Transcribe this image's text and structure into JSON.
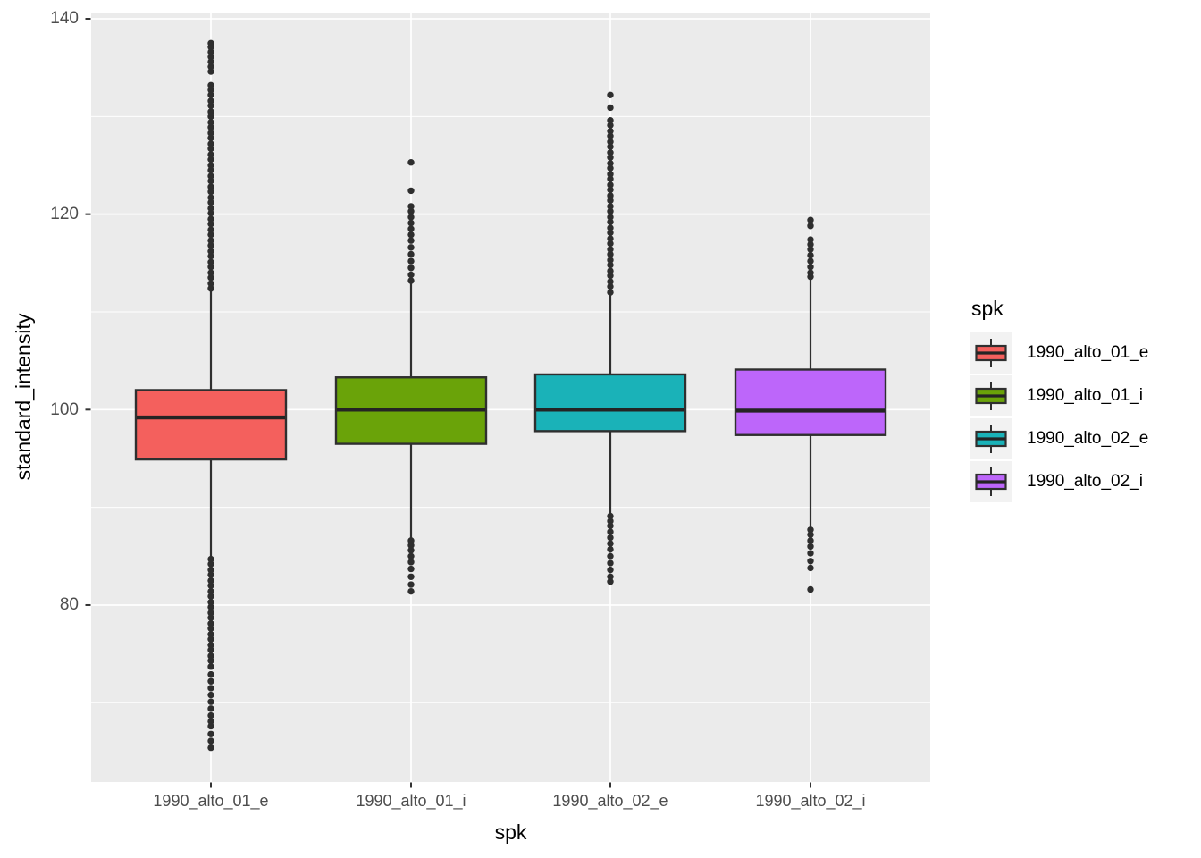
{
  "figure": {
    "background": "#FFFFFF"
  },
  "panel": {
    "background": "#EBEBEB",
    "grid_color": "#FFFFFF"
  },
  "axes": {
    "y": {
      "title": "standard_intensity",
      "ticks": [
        "140",
        "120",
        "100",
        "80"
      ]
    },
    "x": {
      "title": "spk",
      "ticks": [
        "1990_alto_01_e",
        "1990_alto_01_i",
        "1990_alto_02_e",
        "1990_alto_02_i"
      ]
    }
  },
  "legend": {
    "title": "spk",
    "key_background": "#F2F2F2",
    "items": [
      {
        "label": "1990_alto_01_e",
        "color": "#F4605D"
      },
      {
        "label": "1990_alto_01_i",
        "color": "#6AA309"
      },
      {
        "label": "1990_alto_02_e",
        "color": "#1AB2B8"
      },
      {
        "label": "1990_alto_02_i",
        "color": "#BD66FA"
      }
    ]
  },
  "chart_data": {
    "type": "boxplot",
    "title": "",
    "xlabel": "spk",
    "ylabel": "standard_intensity",
    "ylim": [
      61.9,
      140.6
    ],
    "y_major_ticks": [
      140,
      120,
      100,
      80
    ],
    "y_minor_ticks": [
      130,
      110,
      90,
      70
    ],
    "grid": true,
    "legend_position": "right",
    "panel_background": "#EBEBEB",
    "stroke_color": "#2F2F2F",
    "categories": [
      "1990_alto_01_e",
      "1990_alto_01_i",
      "1990_alto_02_e",
      "1990_alto_02_i"
    ],
    "series": [
      {
        "name": "1990_alto_01_e",
        "color": "#F4605D",
        "q1": 94.9,
        "median": 99.2,
        "q3": 102.0,
        "whisker_low": 84.7,
        "whisker_high": 112.4,
        "outliers_high": [
          112.4,
          112.9,
          113.5,
          114.0,
          114.6,
          115.1,
          115.7,
          116.2,
          116.8,
          117.3,
          117.9,
          118.4,
          119.0,
          119.5,
          120.1,
          120.6,
          121.2,
          121.7,
          122.3,
          122.8,
          123.4,
          123.9,
          124.5,
          125.0,
          125.6,
          126.1,
          126.7,
          127.2,
          127.8,
          128.3,
          128.9,
          129.4,
          130.0,
          130.5,
          131.1,
          131.6,
          132.2,
          132.7,
          133.2,
          134.6,
          135.1,
          135.6,
          136.1,
          136.6,
          137.1,
          137.5
        ],
        "outliers_low": [
          84.7,
          84.2,
          83.6,
          83.1,
          82.5,
          82.0,
          81.4,
          80.9,
          80.3,
          79.8,
          79.2,
          78.7,
          78.1,
          77.6,
          77.0,
          76.5,
          75.9,
          75.4,
          74.8,
          74.3,
          73.7,
          72.9,
          72.2,
          71.5,
          70.8,
          70.1,
          69.4,
          68.7,
          68.1,
          67.6,
          66.8,
          66.1,
          65.4
        ]
      },
      {
        "name": "1990_alto_01_i",
        "color": "#6AA309",
        "q1": 96.5,
        "median": 100.0,
        "q3": 103.3,
        "whisker_low": 86.8,
        "whisker_high": 113.1,
        "outliers_high": [
          125.3,
          122.4,
          120.8,
          120.3,
          119.7,
          119.1,
          118.5,
          117.9,
          117.3,
          116.6,
          115.9,
          115.2,
          114.5,
          113.8,
          113.2
        ],
        "outliers_low": [
          86.6,
          86.1,
          85.6,
          85.0,
          84.4,
          83.7,
          82.9,
          82.1,
          81.4
        ]
      },
      {
        "name": "1990_alto_02_e",
        "color": "#1AB2B8",
        "q1": 97.8,
        "median": 100.0,
        "q3": 103.6,
        "whisker_low": 89.3,
        "whisker_high": 112.0,
        "outliers_high": [
          132.2,
          130.9,
          129.6,
          129.1,
          128.5,
          128.0,
          127.4,
          126.9,
          126.3,
          125.8,
          125.2,
          124.7,
          124.1,
          123.6,
          123.0,
          122.5,
          121.9,
          121.4,
          120.8,
          120.3,
          119.7,
          119.2,
          118.6,
          118.1,
          117.5,
          117.0,
          116.4,
          115.9,
          115.3,
          114.8,
          114.2,
          113.7,
          113.1,
          112.6,
          112.0
        ],
        "outliers_low": [
          89.1,
          88.6,
          88.1,
          87.5,
          86.9,
          86.3,
          85.7,
          85.0,
          84.3,
          83.6,
          82.9,
          82.4
        ]
      },
      {
        "name": "1990_alto_02_i",
        "color": "#BD66FA",
        "q1": 97.4,
        "median": 99.9,
        "q3": 104.1,
        "whisker_low": 87.9,
        "whisker_high": 113.6,
        "outliers_high": [
          119.4,
          118.8,
          117.4,
          116.9,
          116.4,
          115.8,
          115.2,
          114.6,
          114.0,
          113.6
        ],
        "outliers_low": [
          87.7,
          87.2,
          86.6,
          86.0,
          85.3,
          84.5,
          83.8,
          81.6
        ]
      }
    ]
  }
}
